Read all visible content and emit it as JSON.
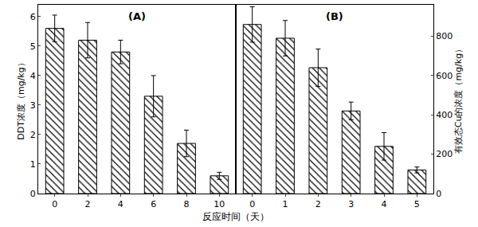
{
  "chart_data": [
    {
      "type": "bar",
      "panel_label": "(A)",
      "categories": [
        "0",
        "2",
        "4",
        "6",
        "8",
        "10"
      ],
      "values": [
        5.6,
        5.2,
        4.8,
        3.3,
        1.7,
        0.6
      ],
      "errors": [
        0.45,
        0.6,
        0.4,
        0.7,
        0.45,
        0.12
      ],
      "color": "#000000",
      "ylabel": "DDT浓度（mg/kg）",
      "ylim": [
        0,
        6.4
      ],
      "yticks": [
        0,
        1,
        2,
        3,
        4,
        5,
        6
      ],
      "grid": false
    },
    {
      "type": "bar",
      "panel_label": "(B)",
      "categories": [
        "0",
        "1",
        "2",
        "3",
        "4",
        "5"
      ],
      "values": [
        860,
        790,
        640,
        420,
        240,
        120
      ],
      "errors": [
        90,
        90,
        95,
        45,
        70,
        15
      ],
      "color": "#000000",
      "ylabel": "有效态Cu的浓度（mg/kg）",
      "ylim": [
        0,
        960
      ],
      "yticks": [
        0,
        200,
        400,
        600,
        800
      ],
      "grid": false
    }
  ],
  "xlabel": "反应时间（天）"
}
